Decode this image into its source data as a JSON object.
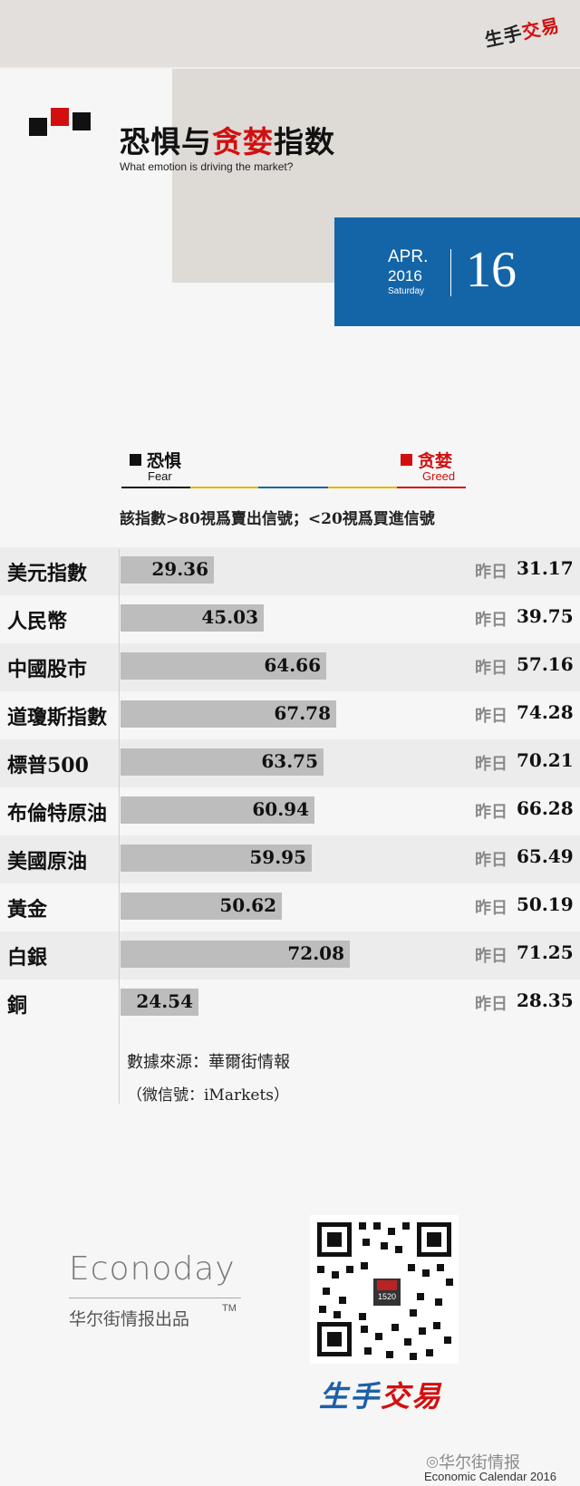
{
  "header": {
    "brand": [
      "生手",
      "交易"
    ],
    "title_parts": [
      "恐惧与",
      "贪婪",
      "指数"
    ],
    "subtitle": "What emotion is driving the market?"
  },
  "date": {
    "month": "APR.",
    "year": "2016",
    "weekday": "Saturday",
    "day": "16"
  },
  "legend": {
    "fear_zh": "恐惧",
    "fear_en": "Fear",
    "greed_zh": "贪婪",
    "greed_en": "Greed",
    "scale_colors": [
      "#111111",
      "#e8b400",
      "#1465a8",
      "#e8b400",
      "#d20f0f"
    ]
  },
  "note": "該指數>80視爲賣出信號；<20視爲買進信號",
  "prev_label": "昨日",
  "colors": {
    "accent_red": "#d20f0f",
    "accent_blue": "#1465a8",
    "bar": "#bdbdbd"
  },
  "chart_data": {
    "type": "bar",
    "orientation": "horizontal",
    "xlim": [
      0,
      100
    ],
    "categories": [
      "美元指數",
      "人民幣",
      "中國股市",
      "道瓊斯指數",
      "標普500",
      "布倫特原油",
      "美國原油",
      "黃金",
      "白銀",
      "銅"
    ],
    "values": [
      29.36,
      45.03,
      64.66,
      67.78,
      63.75,
      60.94,
      59.95,
      50.62,
      72.08,
      24.54
    ],
    "previous": [
      31.17,
      39.75,
      57.16,
      74.28,
      70.21,
      66.28,
      65.49,
      50.19,
      71.25,
      28.35
    ]
  },
  "source": {
    "line1": "數據來源：華爾街情報",
    "line2": "（微信號：iMarkets）"
  },
  "footer": {
    "econoday": "Econoday",
    "econoday_sub": "华尔街情报出品",
    "tm": "TM",
    "qr_badge": "1520",
    "brand": [
      "生手",
      "交易"
    ],
    "watermark": "华尔街情报",
    "calendar": "Economic Calendar 2016"
  }
}
